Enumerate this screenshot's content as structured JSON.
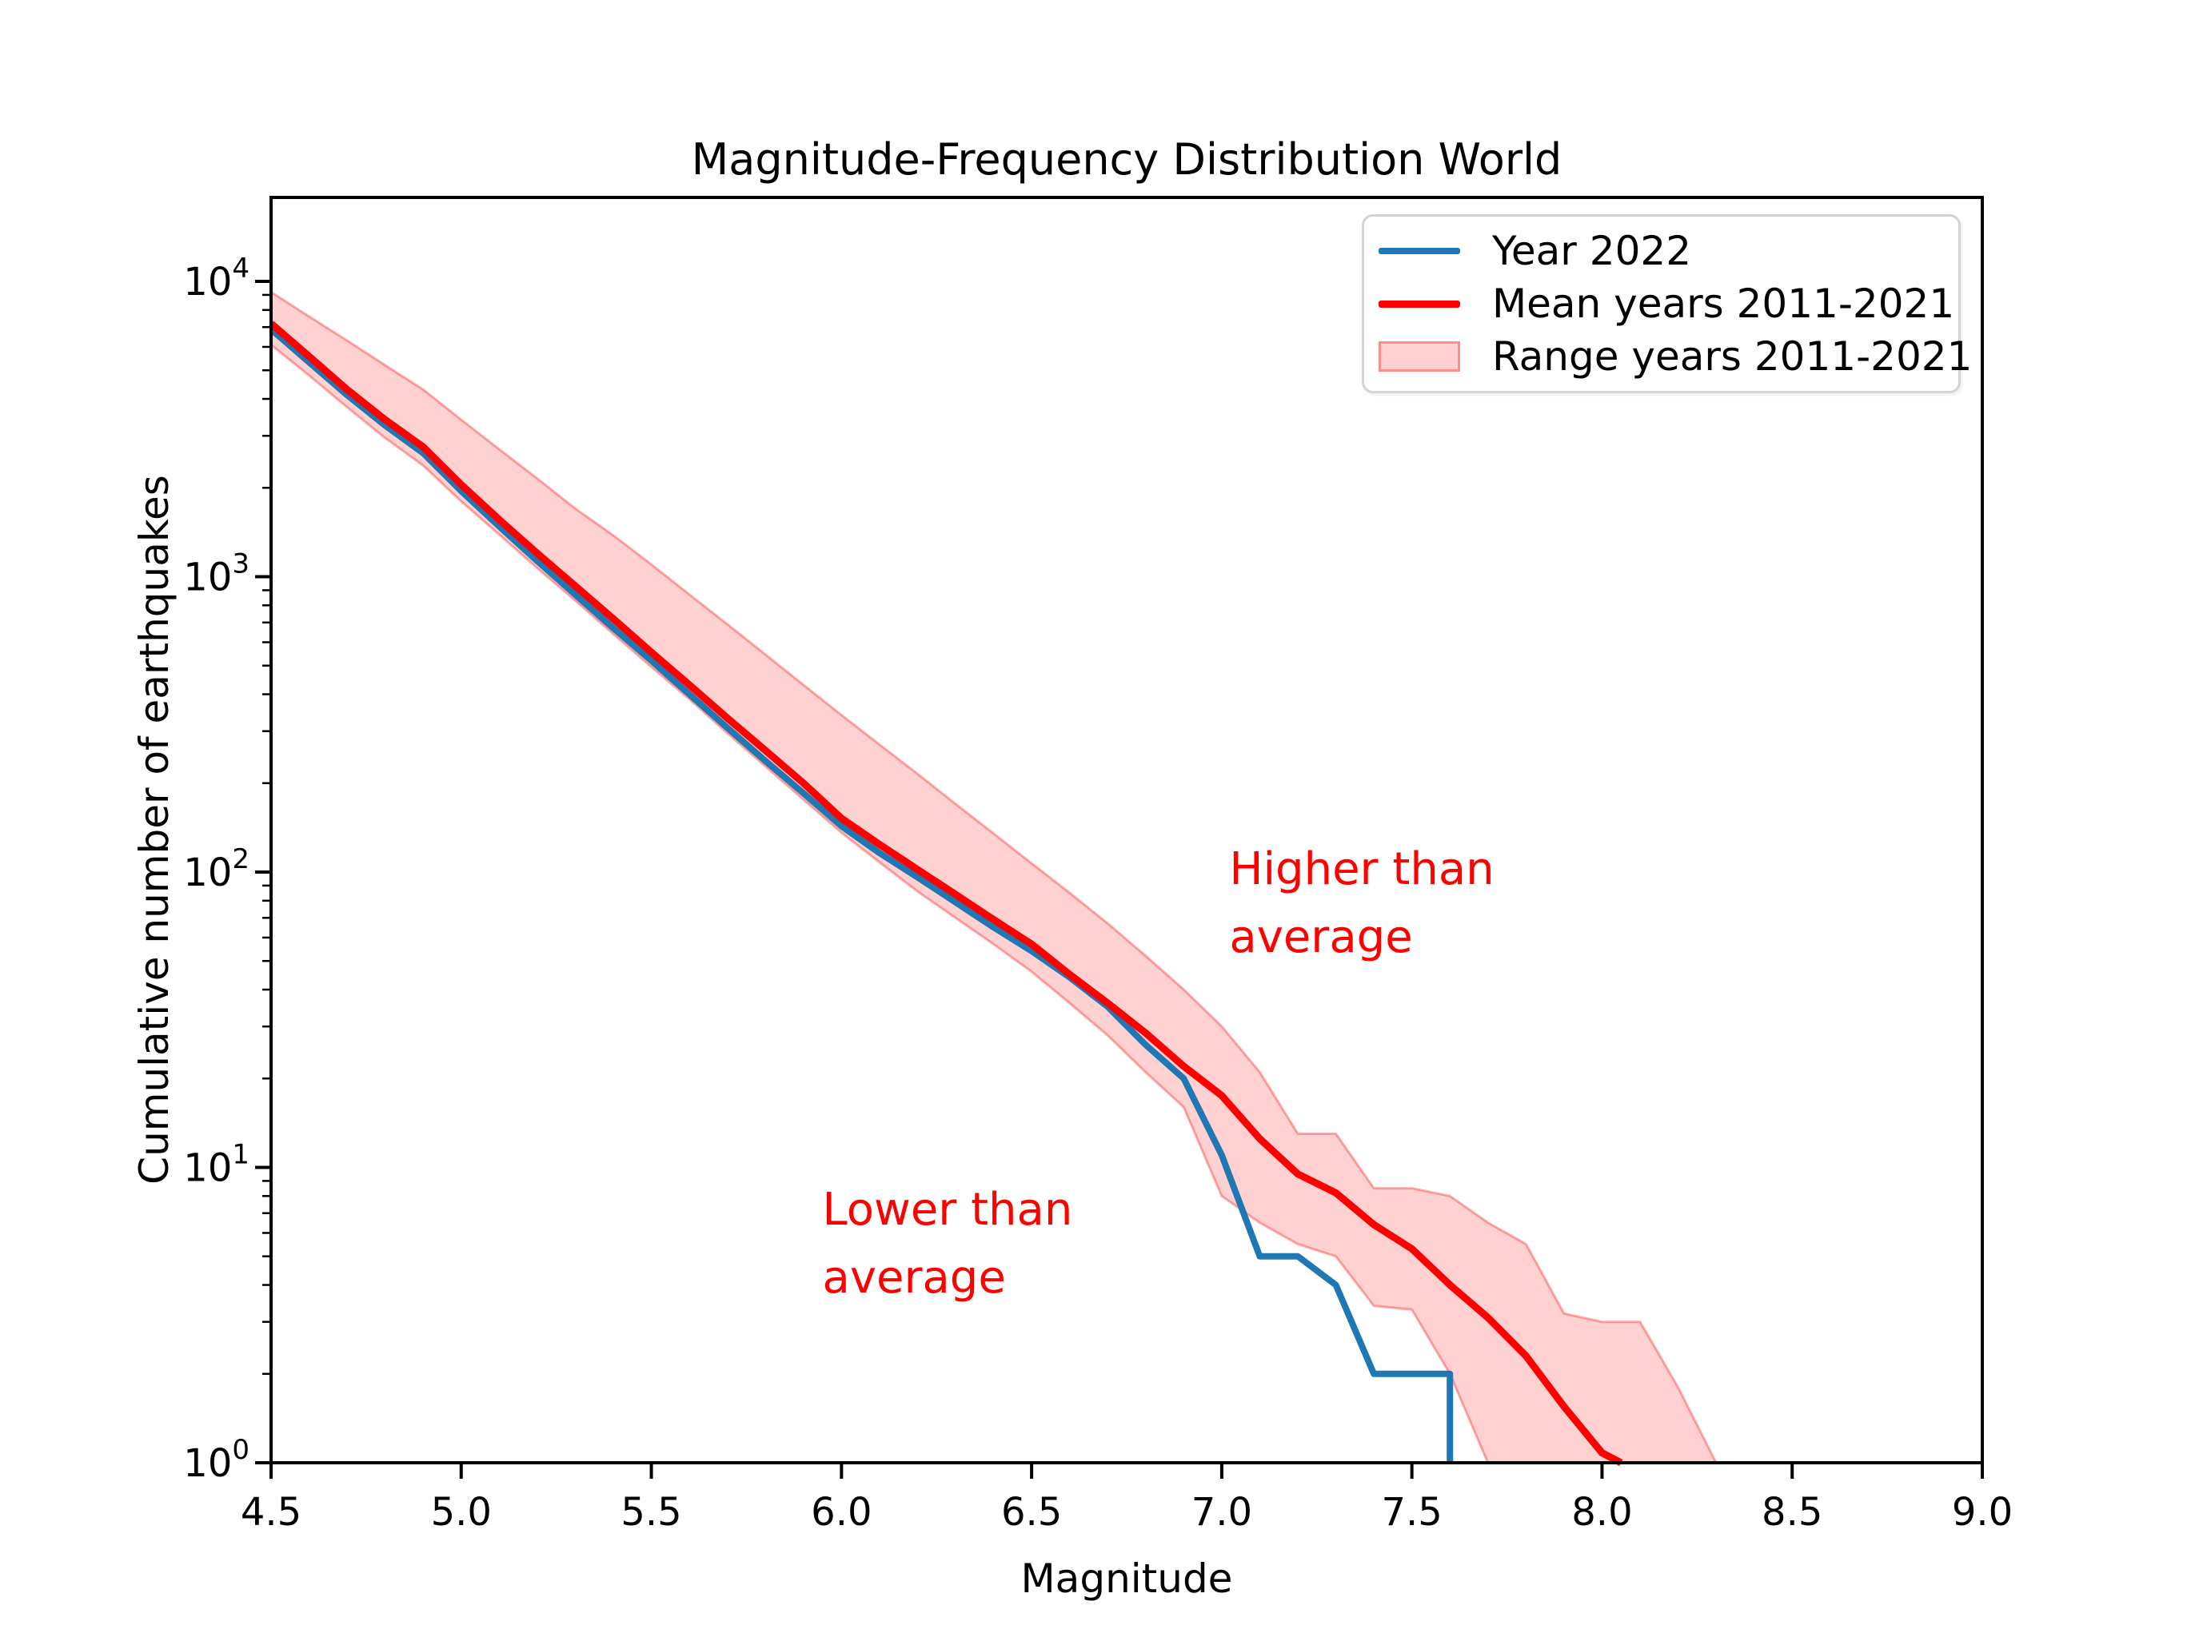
{
  "chart_data": {
    "type": "line",
    "title": "Magnitude-Frequency Distribution World",
    "xlabel": "Magnitude",
    "ylabel": "Cumulative number of earthquakes",
    "xlim": [
      4.5,
      9.0
    ],
    "ylog": true,
    "ylim_log10_exponents": [
      0,
      4
    ],
    "grid": false,
    "legend_position": "upper right",
    "x_ticks": [
      {
        "value": 4.5,
        "label": "4.5"
      },
      {
        "value": 5.0,
        "label": "5.0"
      },
      {
        "value": 5.5,
        "label": "5.5"
      },
      {
        "value": 6.0,
        "label": "6.0"
      },
      {
        "value": 6.5,
        "label": "6.5"
      },
      {
        "value": 7.0,
        "label": "7.0"
      },
      {
        "value": 7.5,
        "label": "7.5"
      },
      {
        "value": 8.0,
        "label": "8.0"
      },
      {
        "value": 8.5,
        "label": "8.5"
      },
      {
        "value": 9.0,
        "label": "9.0"
      }
    ],
    "y_tick_exponents": [
      0,
      1,
      2,
      3,
      4
    ],
    "series": [
      {
        "name": "Year 2022",
        "color": "#1f77b4",
        "x": [
          4.5,
          4.6,
          4.7,
          4.8,
          4.9,
          5.0,
          5.1,
          5.2,
          5.3,
          5.4,
          5.5,
          5.6,
          5.7,
          5.8,
          5.9,
          6.0,
          6.1,
          6.2,
          6.3,
          6.4,
          6.5,
          6.6,
          6.7,
          6.8,
          6.9,
          7.0,
          7.1,
          7.2,
          7.3,
          7.4,
          7.5,
          7.6,
          7.6
        ],
        "y": [
          6880,
          5320,
          4120,
          3250,
          2620,
          1950,
          1480,
          1130,
          870,
          670,
          520,
          400,
          308,
          238,
          185,
          143,
          116,
          96,
          79,
          65,
          54,
          44,
          35,
          26,
          20,
          11,
          5,
          5,
          4,
          2,
          2,
          2,
          1
        ]
      },
      {
        "name": "Mean years 2011-2021",
        "color": "#ff0000",
        "x": [
          4.5,
          4.6,
          4.7,
          4.8,
          4.9,
          5.0,
          5.1,
          5.2,
          5.3,
          5.4,
          5.5,
          5.6,
          5.7,
          5.8,
          5.9,
          6.0,
          6.1,
          6.2,
          6.3,
          6.4,
          6.5,
          6.6,
          6.7,
          6.8,
          6.9,
          7.0,
          7.1,
          7.2,
          7.3,
          7.4,
          7.5,
          7.6,
          7.7,
          7.8,
          7.9,
          8.0,
          8.05
        ],
        "y": [
          7200,
          5570,
          4300,
          3400,
          2750,
          2050,
          1560,
          1200,
          930,
          720,
          555,
          430,
          332,
          258,
          200,
          152,
          124,
          102,
          84,
          69,
          57,
          45,
          36,
          28.5,
          22,
          17.5,
          12.5,
          9.5,
          8.2,
          6.4,
          5.3,
          4.0,
          3.1,
          2.3,
          1.55,
          1.08,
          1.0
        ]
      }
    ],
    "band": {
      "name": "Range years 2011-2021",
      "color": "#ff0000",
      "fill_alpha": 0.18,
      "edge_alpha": 0.33,
      "x": [
        4.5,
        4.6,
        4.7,
        4.8,
        4.9,
        5.0,
        5.1,
        5.2,
        5.3,
        5.4,
        5.5,
        5.6,
        5.7,
        5.8,
        5.9,
        6.0,
        6.1,
        6.2,
        6.3,
        6.4,
        6.5,
        6.6,
        6.7,
        6.8,
        6.9,
        7.0,
        7.1,
        7.2,
        7.3,
        7.4,
        7.5,
        7.6,
        7.7,
        7.8,
        7.9,
        8.0,
        8.1,
        8.2,
        8.3
      ],
      "hi": [
        9200,
        7600,
        6300,
        5200,
        4300,
        3400,
        2700,
        2150,
        1700,
        1380,
        1100,
        870,
        690,
        545,
        430,
        340,
        270,
        215,
        170,
        135,
        107,
        85,
        67,
        52,
        40,
        30,
        21,
        13,
        13,
        8.5,
        8.5,
        8,
        6.5,
        5.5,
        3.2,
        3.0,
        3.0,
        1.8,
        1.0
      ],
      "lo": [
        6100,
        4800,
        3750,
        2950,
        2380,
        1800,
        1390,
        1070,
        830,
        640,
        495,
        385,
        295,
        228,
        176,
        136,
        108,
        86,
        70,
        57,
        46,
        36,
        28,
        21,
        16,
        8,
        6.5,
        5.5,
        5,
        3.4,
        3.3,
        2.0,
        1.0,
        1.0,
        1.0,
        1.0,
        1.0,
        1.0,
        1.0
      ]
    },
    "annotations": [
      {
        "id": "higher",
        "lines": [
          "Higher than",
          "average"
        ],
        "color": "#ff0000",
        "x": 7.02,
        "y": 91
      },
      {
        "id": "lower",
        "lines": [
          "Lower than",
          "average"
        ],
        "color": "#ff0000",
        "x": 5.95,
        "y": 6.4
      }
    ]
  }
}
